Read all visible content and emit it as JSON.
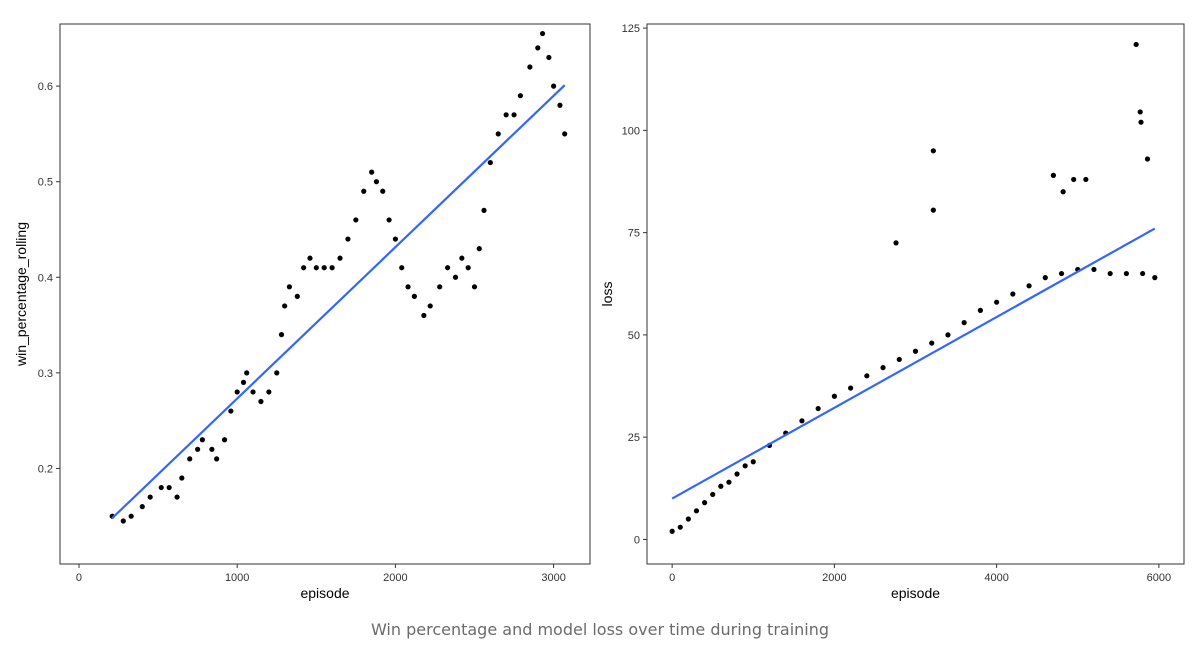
{
  "caption": "Win percentage and model loss over time during training",
  "colors": {
    "points": "#000000",
    "trend": "#3366ff",
    "panel_border": "#333333"
  },
  "chart_data": [
    {
      "type": "scatter",
      "xlabel": "episode",
      "ylabel": "win_percentage_rolling",
      "xlim": [
        -120,
        3230
      ],
      "ylim": [
        0.1,
        0.665
      ],
      "x_ticks": [
        0,
        1000,
        2000,
        3000
      ],
      "x_tick_labels": [
        "0",
        "1000",
        "2000",
        "3000"
      ],
      "y_ticks": [
        0.2,
        0.3,
        0.4,
        0.5,
        0.6
      ],
      "y_tick_labels": [
        "0.2",
        "0.3",
        "0.4",
        "0.5",
        "0.6"
      ],
      "grid": false,
      "series": [
        {
          "kind": "points",
          "x": [
            210,
            280,
            330,
            400,
            450,
            520,
            570,
            620,
            650,
            700,
            750,
            780,
            840,
            870,
            920,
            960,
            1000,
            1040,
            1060,
            1100,
            1150,
            1200,
            1250,
            1280,
            1300,
            1330,
            1380,
            1420,
            1460,
            1500,
            1550,
            1600,
            1650,
            1700,
            1750,
            1800,
            1850,
            1880,
            1920,
            1960,
            2000,
            2040,
            2080,
            2120,
            2180,
            2220,
            2280,
            2330,
            2380,
            2420,
            2460,
            2500,
            2530,
            2560,
            2600,
            2650,
            2700,
            2750,
            2790,
            2850,
            2900,
            2930,
            2970,
            3000,
            3040,
            3070
          ],
          "y": [
            0.15,
            0.145,
            0.15,
            0.16,
            0.17,
            0.18,
            0.18,
            0.17,
            0.19,
            0.21,
            0.22,
            0.23,
            0.22,
            0.21,
            0.23,
            0.26,
            0.28,
            0.29,
            0.3,
            0.28,
            0.27,
            0.28,
            0.3,
            0.34,
            0.37,
            0.39,
            0.38,
            0.41,
            0.42,
            0.41,
            0.41,
            0.41,
            0.42,
            0.44,
            0.46,
            0.49,
            0.51,
            0.5,
            0.49,
            0.46,
            0.44,
            0.41,
            0.39,
            0.38,
            0.36,
            0.37,
            0.39,
            0.41,
            0.4,
            0.42,
            0.41,
            0.39,
            0.43,
            0.47,
            0.52,
            0.55,
            0.57,
            0.57,
            0.59,
            0.62,
            0.64,
            0.655,
            0.63,
            0.6,
            0.58,
            0.55
          ]
        },
        {
          "kind": "trend",
          "name": "",
          "x": [
            210,
            3070
          ],
          "y": [
            0.148,
            0.601
          ]
        }
      ]
    },
    {
      "type": "scatter",
      "xlabel": "episode",
      "ylabel": "loss",
      "xlim": [
        -310,
        6310
      ],
      "ylim": [
        -6,
        126
      ],
      "x_ticks": [
        0,
        2000,
        4000,
        6000
      ],
      "x_tick_labels": [
        "0",
        "2000",
        "4000",
        "6000"
      ],
      "y_ticks": [
        0,
        25,
        50,
        75,
        100,
        125
      ],
      "y_tick_labels": [
        "0",
        "25",
        "50",
        "75",
        "100",
        "125"
      ],
      "grid": false,
      "series": [
        {
          "kind": "points",
          "x": [
            0,
            100,
            200,
            300,
            400,
            500,
            600,
            700,
            800,
            900,
            1000,
            1200,
            1400,
            1600,
            1800,
            2000,
            2200,
            2400,
            2600,
            2800,
            3000,
            3200,
            3400,
            3600,
            3800,
            4000,
            4200,
            4400,
            4600,
            4800,
            5000,
            5200,
            5400,
            5600,
            5800,
            5950
          ],
          "y": [
            2,
            3,
            5,
            7,
            9,
            11,
            13,
            14,
            16,
            18,
            19,
            23,
            26,
            29,
            32,
            35,
            37,
            40,
            42,
            44,
            46,
            48,
            50,
            53,
            56,
            58,
            60,
            62,
            64,
            65,
            66,
            66,
            65,
            65,
            65,
            64
          ]
        },
        {
          "kind": "outliers",
          "x": [
            2760,
            3220,
            3220,
            4700,
            4820,
            4950,
            5100,
            5720,
            5770,
            5780,
            5860
          ],
          "y": [
            72.5,
            95,
            80.5,
            89,
            85,
            88,
            88,
            121,
            104.5,
            102,
            93
          ]
        },
        {
          "kind": "trend",
          "name": "",
          "x": [
            0,
            5950
          ],
          "y": [
            10,
            76
          ]
        }
      ]
    }
  ]
}
